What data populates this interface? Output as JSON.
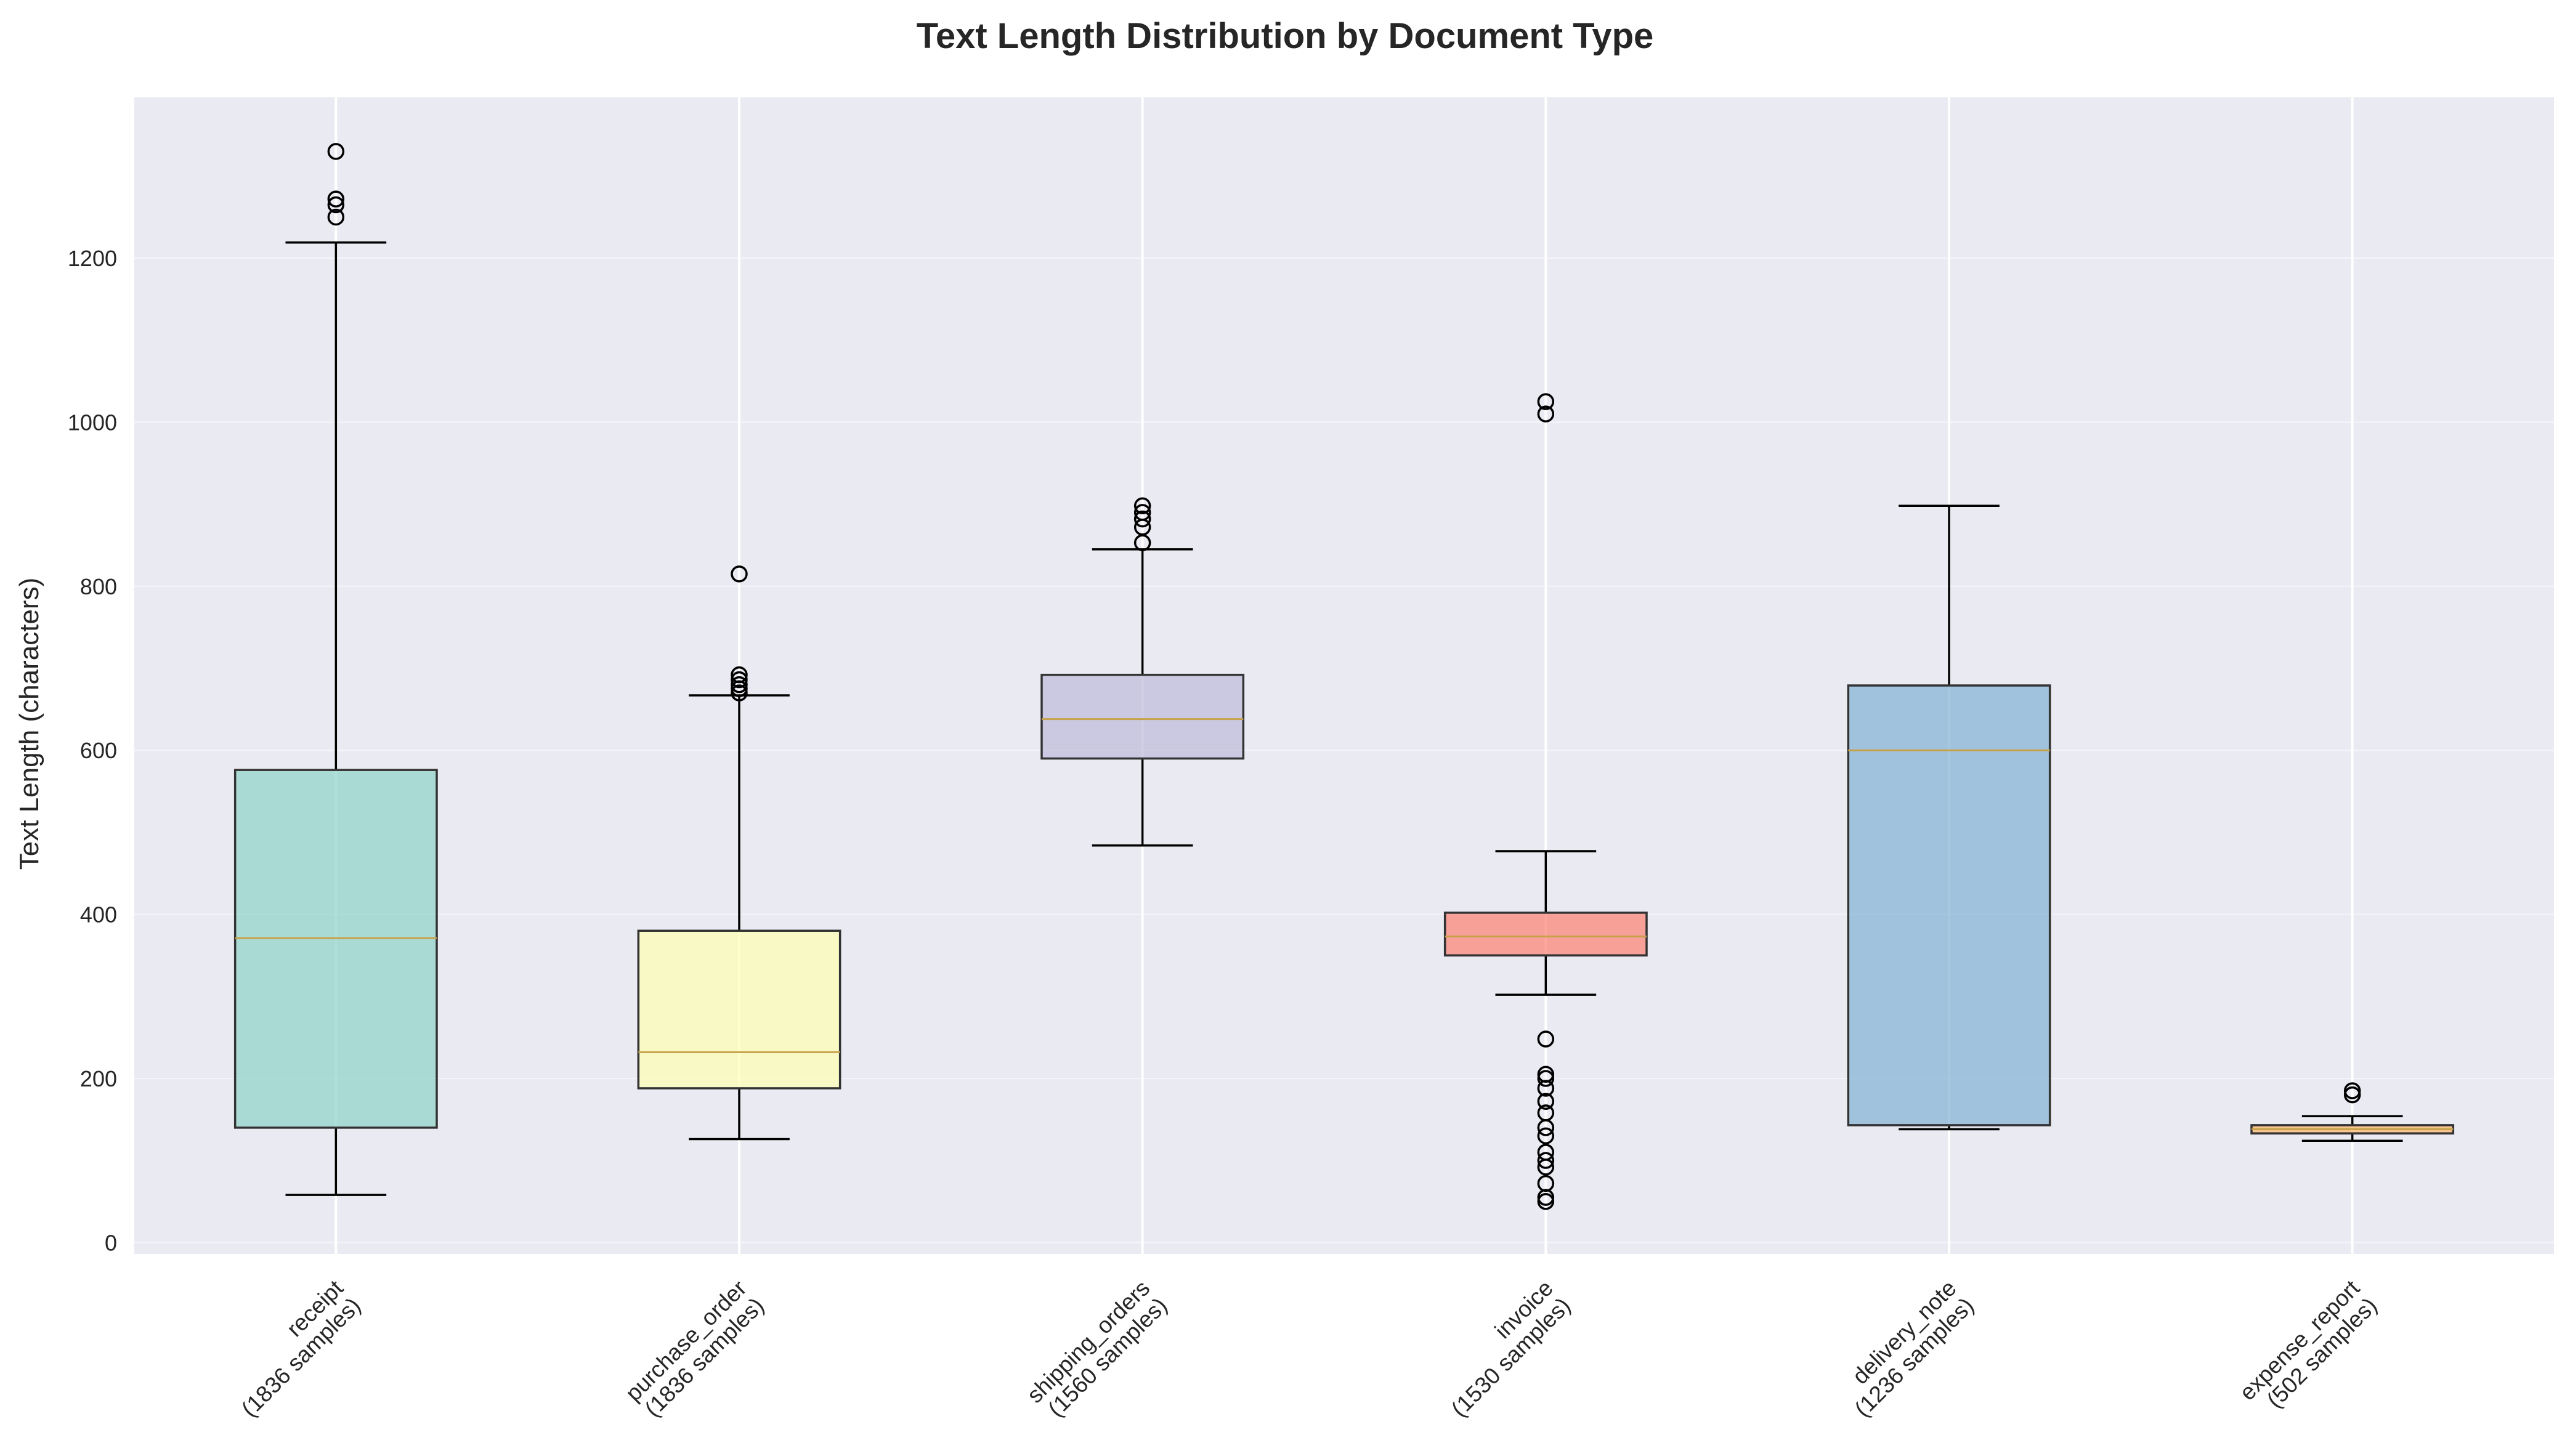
{
  "chart_data": {
    "type": "box",
    "title": "Text Length Distribution by Document Type",
    "xlabel": "",
    "ylabel": "Text Length (characters)",
    "ylim": [
      -14,
      1396
    ],
    "yticks": [
      0,
      200,
      400,
      600,
      800,
      1000,
      1200
    ],
    "grid": true,
    "categories": [
      {
        "name": "receipt",
        "samples_label": "(1836 samples)",
        "color": "#8dd3c7",
        "whisker_low": 58,
        "q1": 140,
        "median": 371,
        "q3": 576,
        "whisker_high": 1219,
        "outliers": [
          1250,
          1265,
          1272,
          1330
        ]
      },
      {
        "name": "purchase_order",
        "samples_label": "(1836 samples)",
        "color": "#ffffb3",
        "whisker_low": 126,
        "q1": 188,
        "median": 232,
        "q3": 380,
        "whisker_high": 667,
        "outliers": [
          670,
          675,
          680,
          686,
          692,
          815
        ]
      },
      {
        "name": "shipping_orders",
        "samples_label": "(1560 samples)",
        "color": "#bebada",
        "whisker_low": 484,
        "q1": 590,
        "median": 638,
        "q3": 692,
        "whisker_high": 845,
        "outliers": [
          853,
          872,
          882,
          890,
          898
        ]
      },
      {
        "name": "invoice",
        "samples_label": "(1530 samples)",
        "color": "#fb8072",
        "whisker_low": 302,
        "q1": 350,
        "median": 373,
        "q3": 402,
        "whisker_high": 477,
        "outliers": [
          50,
          55,
          72,
          92,
          100,
          110,
          130,
          140,
          158,
          172,
          188,
          200,
          205,
          248,
          1010,
          1025
        ]
      },
      {
        "name": "delivery_note",
        "samples_label": "(1236 samples)",
        "color": "#80b1d3",
        "whisker_low": 138,
        "q1": 143,
        "median": 600,
        "q3": 679,
        "whisker_high": 898,
        "outliers": []
      },
      {
        "name": "expense_report",
        "samples_label": "(502 samples)",
        "color": "#fdb462",
        "whisker_low": 124,
        "q1": 133,
        "median": 138,
        "q3": 143,
        "whisker_high": 154,
        "outliers": [
          180,
          185
        ]
      }
    ]
  }
}
